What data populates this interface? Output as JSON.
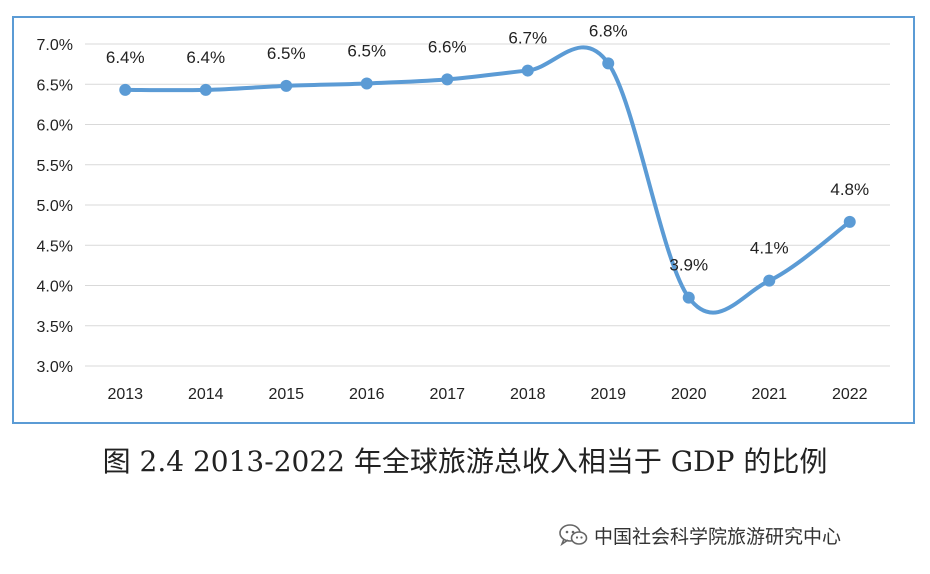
{
  "caption": "图 2.4 2013-2022 年全球旅游总收入相当于 GDP 的比例",
  "watermark": {
    "text": "中国社会科学院旅游研究中心",
    "icon": "wechat-icon"
  },
  "colors": {
    "line": "#5b9bd5",
    "border": "#5b9bd5",
    "grid": "#d9d9d9",
    "text": "#222222"
  },
  "chart_data": {
    "type": "line",
    "title": "",
    "xlabel": "",
    "ylabel": "",
    "categories": [
      "2013",
      "2014",
      "2015",
      "2016",
      "2017",
      "2018",
      "2019",
      "2020",
      "2021",
      "2022"
    ],
    "series": [
      {
        "values": [
          6.43,
          6.43,
          6.48,
          6.51,
          6.56,
          6.67,
          6.76,
          3.85,
          4.06,
          4.79
        ],
        "data_labels": [
          "6.4%",
          "6.4%",
          "6.5%",
          "6.5%",
          "6.6%",
          "6.7%",
          "6.8%",
          "3.9%",
          "4.1%",
          "4.8%"
        ]
      }
    ],
    "ylim": [
      3.0,
      7.0
    ],
    "yticks": [
      "3.0%",
      "3.5%",
      "4.0%",
      "4.5%",
      "5.0%",
      "5.5%",
      "6.0%",
      "6.5%",
      "7.0%"
    ],
    "grid": true,
    "smooth": true,
    "legend": "none"
  }
}
